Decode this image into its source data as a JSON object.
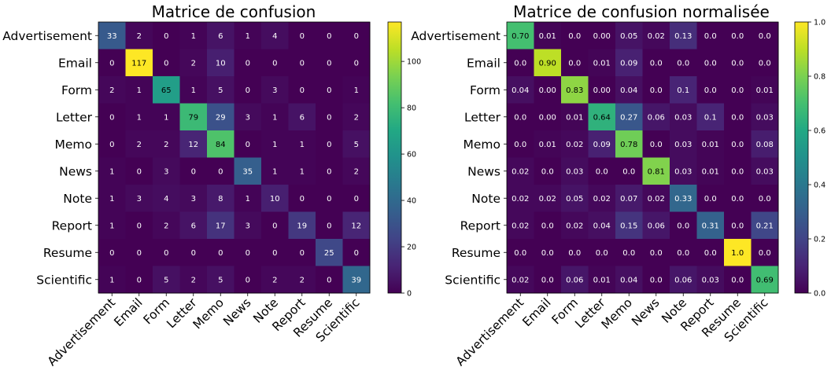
{
  "chart_data": [
    {
      "type": "heatmap",
      "title": "Matrice de confusion",
      "labels": [
        "Advertisement",
        "Email",
        "Form",
        "Letter",
        "Memo",
        "News",
        "Note",
        "Report",
        "Resume",
        "Scientific"
      ],
      "values": [
        [
          "33",
          "2",
          "0",
          "1",
          "6",
          "1",
          "4",
          "0",
          "0",
          "0"
        ],
        [
          "0",
          "117",
          "0",
          "2",
          "10",
          "0",
          "0",
          "0",
          "0",
          "0"
        ],
        [
          "2",
          "1",
          "65",
          "1",
          "5",
          "0",
          "3",
          "0",
          "0",
          "1"
        ],
        [
          "0",
          "1",
          "1",
          "79",
          "29",
          "3",
          "1",
          "6",
          "0",
          "2"
        ],
        [
          "0",
          "2",
          "2",
          "12",
          "84",
          "0",
          "1",
          "1",
          "0",
          "5"
        ],
        [
          "1",
          "0",
          "3",
          "0",
          "0",
          "35",
          "1",
          "1",
          "0",
          "2"
        ],
        [
          "1",
          "3",
          "4",
          "3",
          "8",
          "1",
          "10",
          "0",
          "0",
          "0"
        ],
        [
          "1",
          "0",
          "2",
          "6",
          "17",
          "3",
          "0",
          "19",
          "0",
          "12"
        ],
        [
          "0",
          "0",
          "0",
          "0",
          "0",
          "0",
          "0",
          "0",
          "25",
          "0"
        ],
        [
          "1",
          "0",
          "5",
          "2",
          "5",
          "0",
          "2",
          "2",
          "0",
          "39"
        ]
      ],
      "vmin": 0,
      "vmax": 117,
      "colorbar_ticks": [
        "0",
        "20",
        "40",
        "60",
        "80",
        "100"
      ],
      "colorbar_tick_values": [
        0,
        20,
        40,
        60,
        80,
        100
      ],
      "colormap": "viridis"
    },
    {
      "type": "heatmap",
      "title": "Matrice de confusion normalisée",
      "labels": [
        "Advertisement",
        "Email",
        "Form",
        "Letter",
        "Memo",
        "News",
        "Note",
        "Report",
        "Resume",
        "Scientific"
      ],
      "values": [
        [
          "0.70",
          "0.01",
          "0.0",
          "0.00",
          "0.05",
          "0.02",
          "0.13",
          "0.0",
          "0.0",
          "0.0"
        ],
        [
          "0.0",
          "0.90",
          "0.0",
          "0.01",
          "0.09",
          "0.0",
          "0.0",
          "0.0",
          "0.0",
          "0.0"
        ],
        [
          "0.04",
          "0.00",
          "0.83",
          "0.00",
          "0.04",
          "0.0",
          "0.1",
          "0.0",
          "0.0",
          "0.01"
        ],
        [
          "0.0",
          "0.00",
          "0.01",
          "0.64",
          "0.27",
          "0.06",
          "0.03",
          "0.1",
          "0.0",
          "0.03"
        ],
        [
          "0.0",
          "0.01",
          "0.02",
          "0.09",
          "0.78",
          "0.0",
          "0.03",
          "0.01",
          "0.0",
          "0.08"
        ],
        [
          "0.02",
          "0.0",
          "0.03",
          "0.0",
          "0.0",
          "0.81",
          "0.03",
          "0.01",
          "0.0",
          "0.03"
        ],
        [
          "0.02",
          "0.02",
          "0.05",
          "0.02",
          "0.07",
          "0.02",
          "0.33",
          "0.0",
          "0.0",
          "0.0"
        ],
        [
          "0.02",
          "0.0",
          "0.02",
          "0.04",
          "0.15",
          "0.06",
          "0.0",
          "0.31",
          "0.0",
          "0.21"
        ],
        [
          "0.0",
          "0.0",
          "0.0",
          "0.0",
          "0.0",
          "0.0",
          "0.0",
          "0.0",
          "1.0",
          "0.0"
        ],
        [
          "0.02",
          "0.0",
          "0.06",
          "0.01",
          "0.04",
          "0.0",
          "0.06",
          "0.03",
          "0.0",
          "0.69"
        ]
      ],
      "vmin": 0,
      "vmax": 1,
      "colorbar_ticks": [
        "0.0",
        "0.2",
        "0.4",
        "0.6",
        "0.8",
        "1.0"
      ],
      "colorbar_tick_values": [
        0,
        0.2,
        0.4,
        0.6,
        0.8,
        1.0
      ],
      "colormap": "viridis"
    }
  ]
}
